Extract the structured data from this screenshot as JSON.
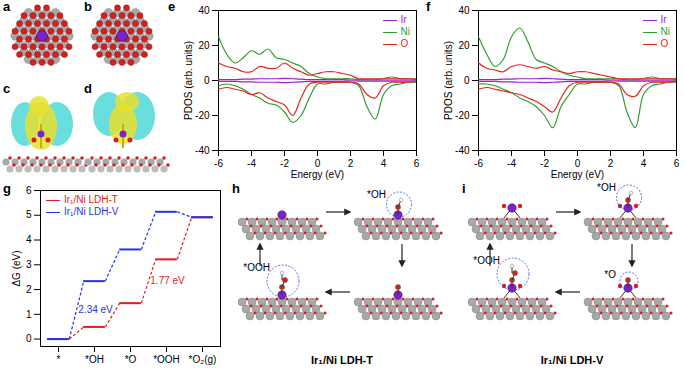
{
  "chart_data": [
    {
      "type": "line",
      "x_label": "Energy (eV)",
      "y_label": "PDOS (arb. units)",
      "x": [
        -6,
        -5.5,
        -5,
        -4.5,
        -4,
        -3.5,
        -3,
        -2.5,
        -2,
        -1.5,
        -1,
        -0.5,
        0,
        0.5,
        1,
        1.5,
        2,
        2.5,
        3,
        3.5,
        4,
        4.5,
        5,
        5.5,
        6
      ],
      "series": [
        {
          "name": "Ir",
          "color": "#a020c8",
          "values": [
            0.5,
            0.5,
            0.5,
            0.8,
            0.8,
            1,
            1,
            1,
            1.2,
            1,
            0.8,
            0.5,
            0.5,
            0.5,
            0.5,
            0.5,
            0.3,
            0.3,
            0.3,
            0.3,
            0.3,
            0.3,
            0.3,
            0.3,
            0.3
          ],
          "spin_down": [
            -0.5,
            -0.5,
            -0.5,
            -0.8,
            -0.8,
            -1,
            -1,
            -1,
            -1.2,
            -1,
            -0.8,
            -0.5,
            -0.5,
            -0.5,
            -0.5,
            -0.5,
            -0.3,
            -0.3,
            -0.3,
            -0.3,
            -0.3,
            -0.3,
            -0.3,
            -0.3,
            -0.3
          ]
        },
        {
          "name": "Ni",
          "color": "#2e9e2e",
          "values": [
            25,
            15,
            10,
            13,
            17,
            15,
            18,
            13,
            12,
            10,
            8,
            4,
            2,
            1,
            1,
            1,
            1,
            0.5,
            0.5,
            0.5,
            1,
            2,
            1,
            1,
            0.5
          ],
          "spin_down": [
            -3,
            -2,
            -3,
            -5,
            -8,
            -10,
            -13,
            -14,
            -18,
            -24,
            -20,
            -10,
            -2,
            -2,
            -1,
            -1,
            -1,
            -3,
            -15,
            -22,
            -8,
            -3,
            -2,
            -1,
            -1
          ]
        },
        {
          "name": "O",
          "color": "#e8231f",
          "values": [
            10,
            8,
            7,
            5,
            5,
            8,
            7,
            7,
            10,
            7,
            5,
            3,
            4,
            5,
            5,
            4,
            3,
            1,
            1,
            1,
            1,
            1,
            1,
            1,
            1
          ],
          "spin_down": [
            -5,
            -4,
            -5,
            -6,
            -8,
            -7,
            -10,
            -12,
            -14,
            -20,
            -10,
            -2,
            -1,
            -1,
            -1,
            -1,
            -1,
            -2,
            -8,
            -10,
            -3,
            -1,
            -1,
            -1,
            -0.5
          ]
        }
      ],
      "xlim": [
        -6,
        6
      ],
      "xticks": [
        -6,
        -4,
        -2,
        0,
        2,
        4,
        6
      ],
      "ylim": [
        -40,
        40
      ],
      "yticks": [
        -40,
        -20,
        0,
        20,
        40
      ],
      "legend": "upper right"
    },
    {
      "type": "line",
      "x_label": "Energy (eV)",
      "y_label": "PDOS (arb. units)",
      "x": [
        -6,
        -5.5,
        -5,
        -4.5,
        -4,
        -3.5,
        -3,
        -2.5,
        -2,
        -1.5,
        -1,
        -0.5,
        0,
        0.5,
        1,
        1.5,
        2,
        2.5,
        3,
        3.5,
        4,
        4.5,
        5,
        5.5,
        6
      ],
      "series": [
        {
          "name": "Ir",
          "color": "#a020c8",
          "values": [
            0.5,
            0.5,
            0.5,
            0.8,
            0.8,
            1,
            1,
            1,
            1.2,
            1,
            0.8,
            0.5,
            0.5,
            0.5,
            0.5,
            0.5,
            0.3,
            0.3,
            0.3,
            0.3,
            0.3,
            0.3,
            0.3,
            0.3,
            0.3
          ],
          "spin_down": [
            -0.5,
            -0.5,
            -0.5,
            -0.8,
            -0.8,
            -1,
            -1,
            -1,
            -1.2,
            -1,
            -0.8,
            -0.5,
            -0.5,
            -0.5,
            -0.5,
            -0.5,
            -0.3,
            -0.3,
            -0.3,
            -0.3,
            -0.3,
            -0.3,
            -0.3,
            -0.3,
            -0.3
          ]
        },
        {
          "name": "Ni",
          "color": "#2e9e2e",
          "values": [
            25,
            15,
            8,
            12,
            25,
            30,
            22,
            12,
            10,
            8,
            5,
            3,
            2,
            1,
            1,
            1,
            1,
            1,
            0.5,
            0.5,
            1,
            2,
            1,
            1,
            0.5
          ],
          "spin_down": [
            -2,
            -2,
            -3,
            -5,
            -7,
            -10,
            -12,
            -15,
            -20,
            -27,
            -15,
            -8,
            -2,
            -2,
            -1,
            -1,
            -1,
            -3,
            -18,
            -27,
            -8,
            -3,
            -2,
            -1,
            -1
          ]
        },
        {
          "name": "O",
          "color": "#e8231f",
          "values": [
            10,
            7,
            6,
            5,
            8,
            9,
            8,
            7,
            8,
            6,
            5,
            4,
            5,
            5,
            4,
            3,
            2,
            1,
            1,
            1,
            1,
            1,
            1,
            1,
            1
          ],
          "spin_down": [
            -5,
            -4,
            -5,
            -6,
            -7,
            -8,
            -10,
            -12,
            -15,
            -18,
            -10,
            -3,
            -1,
            -1,
            -1,
            -1,
            -1,
            -2,
            -8,
            -9,
            -3,
            -1,
            -1,
            -1,
            -0.5
          ]
        }
      ],
      "xlim": [
        -6,
        6
      ],
      "xticks": [
        -6,
        -4,
        -2,
        0,
        2,
        4,
        6
      ],
      "ylim": [
        -40,
        40
      ],
      "yticks": [
        -40,
        -20,
        0,
        20,
        40
      ],
      "legend": "upper right"
    },
    {
      "type": "step",
      "y_label": "ΔG (eV)",
      "categories": [
        "*",
        "*OH",
        "*O",
        "*OOH",
        "*O₂(g)"
      ],
      "series": [
        {
          "name": "Ir₁/Ni LDH-T",
          "color": "#e41a1c",
          "values": [
            0,
            0.49,
            1.45,
            3.22,
            4.92
          ]
        },
        {
          "name": "Ir₁/Ni LDH-V",
          "color": "#1f35e8",
          "values": [
            0,
            2.34,
            3.62,
            5.14,
            4.92
          ]
        }
      ],
      "annotations": [
        {
          "text": "2.34 eV",
          "series": "Ir₁/Ni LDH-V"
        },
        {
          "text": "1.77 eV",
          "series": "Ir₁/Ni LDH-T"
        }
      ],
      "ylim": [
        -0.3,
        6
      ],
      "yticks": [
        0,
        1,
        2,
        3,
        4,
        5,
        6
      ],
      "legend": "upper left"
    }
  ],
  "panel_labels": [
    "a",
    "b",
    "c",
    "d",
    "e",
    "f",
    "g",
    "h",
    "i"
  ],
  "diagrams": [
    {
      "caption": "Ir₁/Ni LDH-T",
      "states": [
        null,
        "*OH",
        null,
        "*OOH"
      ]
    },
    {
      "caption": "Ir₁/Ni LDH-V",
      "states": [
        null,
        "*OH",
        "*O",
        "*OOH"
      ]
    }
  ]
}
